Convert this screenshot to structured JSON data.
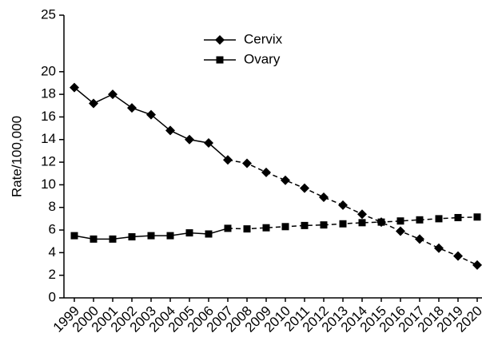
{
  "chart_data": {
    "type": "line",
    "y_label": "Rate/100,000",
    "categories": [
      "1999",
      "2000",
      "2001",
      "2002",
      "2003",
      "2004",
      "2005",
      "2006",
      "2007",
      "2008",
      "2009",
      "2010",
      "2011",
      "2012",
      "2013",
      "2014",
      "2015",
      "2016",
      "2017",
      "2018",
      "2019",
      "2020"
    ],
    "dashed_from": "2007",
    "series": [
      {
        "name": "Cervix",
        "color": "#000000",
        "marker": "diamond",
        "values": [
          18.6,
          17.2,
          18.0,
          16.8,
          16.2,
          14.8,
          14.0,
          13.7,
          12.2,
          11.9,
          11.1,
          10.4,
          9.7,
          8.9,
          8.2,
          7.4,
          6.7,
          5.9,
          5.2,
          4.4,
          3.7,
          2.9
        ]
      },
      {
        "name": "Ovary",
        "color": "#000000",
        "marker": "square",
        "values": [
          5.5,
          5.2,
          5.2,
          5.4,
          5.5,
          5.5,
          5.75,
          5.65,
          6.15,
          6.1,
          6.2,
          6.3,
          6.4,
          6.45,
          6.55,
          6.65,
          6.7,
          6.8,
          6.9,
          7.0,
          7.1,
          7.15
        ]
      }
    ],
    "ylim": [
      0,
      25
    ],
    "yticks": [
      0,
      2,
      4,
      6,
      8,
      10,
      12,
      14,
      16,
      18,
      20,
      25
    ],
    "grid": false
  }
}
